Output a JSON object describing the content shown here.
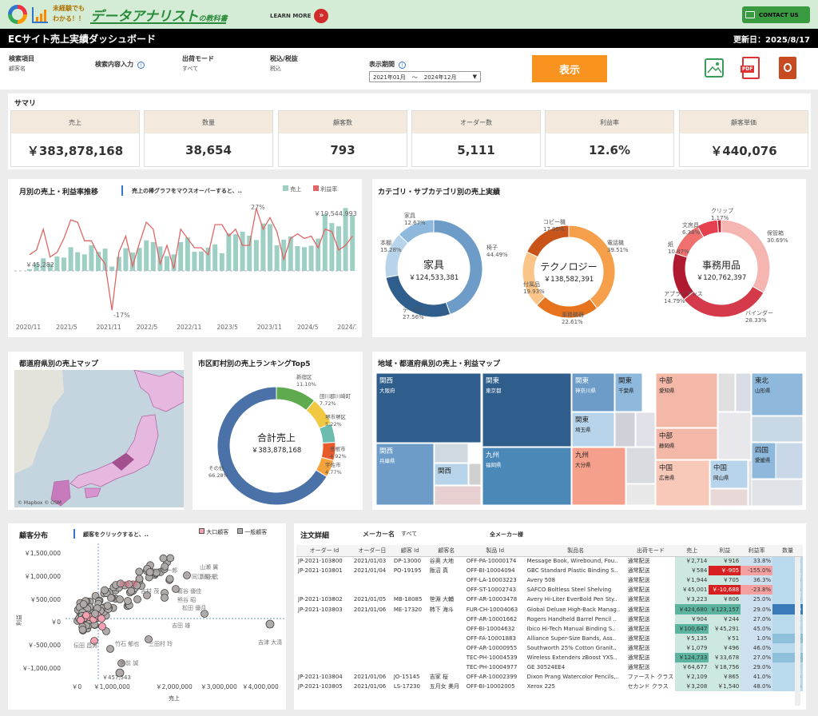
{
  "banner": {
    "logo_top": "未経験でも",
    "logo_bottom": "わかる！！",
    "title": "データアナリスト",
    "title_suffix": "の教科書",
    "learn_more": "LEARN MORE",
    "contact": "CONTACT US"
  },
  "header": {
    "title": "ECサイト売上実績ダッシュボード",
    "updated": "更新日：2025/8/17"
  },
  "filters": [
    {
      "label": "検索項目",
      "value": "顧客名"
    },
    {
      "label": "検索内容入力",
      "value": ""
    },
    {
      "label": "出荷モード",
      "value": "すべて"
    },
    {
      "label": "税込/税抜",
      "value": "税込"
    }
  ],
  "period": {
    "label": "表示期間",
    "from": "2021年01月",
    "sep": "～",
    "to": "2024年12月"
  },
  "show_button": "表示",
  "icons": {
    "image": "image-icon",
    "pdf": "PDF",
    "ppt": "ppt-icon"
  },
  "summary": {
    "title": "サマリ",
    "kpis": [
      {
        "label": "売上",
        "value": "￥383,878,168"
      },
      {
        "label": "数量",
        "value": "38,654"
      },
      {
        "label": "顧客数",
        "value": "793"
      },
      {
        "label": "オーダー数",
        "value": "5,111"
      },
      {
        "label": "利益率",
        "value": "12.6%"
      },
      {
        "label": "顧客単価",
        "value": "￥440,076"
      }
    ]
  },
  "monthly": {
    "title": "月別の売上・利益率推移",
    "hint": "売上の棒グラフをマウスオーバーすると、..",
    "legend_sales": "売上",
    "legend_rate": "利益率",
    "label_max": "￥19,544,993",
    "label_min": "￥45,282",
    "label_rate_max": "27%",
    "label_rate_min": "-17%",
    "xticks": [
      "2020/11",
      "2021/5",
      "2021/11",
      "2022/5",
      "2022/11",
      "2023/5",
      "2023/11",
      "2024/5",
      "2024/11"
    ]
  },
  "category": {
    "title": "カテゴリ・サブカテゴリ別の売上実績"
  },
  "map": {
    "title": "都道府県別の売上マップ",
    "credit": "© Mapbox © OSM"
  },
  "top5": {
    "title": "市区町村別の売上ランキングTop5",
    "center_label": "合計売上",
    "center_value": "￥383,878,168"
  },
  "treemap": {
    "title": "地域・都道府県別の売上・利益マップ"
  },
  "scatter": {
    "title": "顧客分布",
    "hint": "顧客をクリックすると、..",
    "legend_big": "大口顧客",
    "legend_normal": "一般顧客",
    "ylabel": "利益",
    "xlabel": "売上",
    "yticks": [
      "￥1,500,000",
      "￥1,000,000",
      "￥500,000",
      "￥0",
      "￥-500,000",
      "￥-1,000,000"
    ],
    "xticks": [
      "￥0",
      "￥1,000,000",
      "￥2,000,000",
      "￥3,000,000",
      "￥4,000,000"
    ],
    "names": [
      "川崎 一郎",
      "山瀬 翼",
      "同江 昭夫",
      "武藤 陽",
      "吉村 茂",
      "葛谷 優佳",
      "熊谷 昭",
      "松田 優月",
      "吉田 雄",
      "伝田 昌男",
      "竹石 郁也",
      "三田村 玲",
      "吉津 大清",
      "宮前 誠",
      "両野 武"
    ],
    "annotation": "￥457,543"
  },
  "details": {
    "title": "注文詳細",
    "maker_label": "メーカー名",
    "maker_value": "すべて",
    "all_makers": "全メーカー様",
    "columns": [
      "オーダー Id",
      "オーダー日",
      "顧客 Id",
      "顧客名",
      "製品 Id",
      "製品名",
      "出荷モード",
      "売上",
      "利益",
      "利益率",
      "数量"
    ],
    "rows": [
      [
        "JP-2021-103800",
        "2021/01/03",
        "DP-13000",
        "谷奥 大地",
        "OFF-PA-10000174",
        "Message Book, Wirebound, Fou..",
        "通常配送",
        "￥2,714",
        "￥916",
        "33.8%",
        "2"
      ],
      [
        "JP-2021-103801",
        "2021/01/04",
        "PO-19195",
        "飯沼 真",
        "OFF-BI-10004094",
        "GBC Standard Plastic Binding S..",
        "通常配送",
        "￥584",
        "￥-905",
        "-155.0%",
        "2"
      ],
      [
        "",
        "",
        "",
        "",
        "OFF-LA-10003223",
        "Avery 508",
        "通常配送",
        "￥1,944",
        "￥705",
        "36.3%",
        "3"
      ],
      [
        "",
        "",
        "",
        "",
        "OFF-ST-10002743",
        "SAFCO Boltless Steel Shelving",
        "通常配送",
        "￥45,001",
        "￥-10,688",
        "-23.8%",
        "3"
      ],
      [
        "JP-2021-103802",
        "2021/01/05",
        "MB-18085",
        "笹淵 大輔",
        "OFF-AR-10003478",
        "Avery Hi-Liter EverBold Pen Sty..",
        "通常配送",
        "￥3,223",
        "￥806",
        "25.0%",
        "3"
      ],
      [
        "JP-2021-103803",
        "2021/01/06",
        "ME-17320",
        "柿下 海斗",
        "FUR-CH-10004063",
        "Global Deluxe High-Back Manag..",
        "通常配送",
        "￥424,680",
        "￥123,157",
        "29.0%",
        "9"
      ],
      [
        "",
        "",
        "",
        "",
        "OFF-AR-10001662",
        "Rogers Handheld Barrel Pencil ..",
        "通常配送",
        "￥904",
        "￥244",
        "27.0%",
        "2"
      ],
      [
        "",
        "",
        "",
        "",
        "OFF-BI-10004632",
        "Ibico Hi-Tech Manual Binding S..",
        "通常配送",
        "￥100,647",
        "￥45,291",
        "45.0%",
        "2"
      ],
      [
        "",
        "",
        "",
        "",
        "OFF-FA-10001883",
        "Alliance Super-Size Bands, Ass..",
        "通常配送",
        "￥5,135",
        "￥51",
        "1.0%",
        "4"
      ],
      [
        "",
        "",
        "",
        "",
        "OFF-AR-10000955",
        "Southworth 25% Cotton Granit..",
        "通常配送",
        "￥1,079",
        "￥496",
        "46.0%",
        "1"
      ],
      [
        "",
        "",
        "",
        "",
        "TEC-PH-10004539",
        "Wireless Extenders zBoost YXS..",
        "通常配送",
        "￥124,733",
        "￥33,678",
        "27.0%",
        "4"
      ],
      [
        "",
        "",
        "",
        "",
        "TEC-PH-10004977",
        "GE 30524EE4",
        "通常配送",
        "￥64,677",
        "￥18,756",
        "29.0%",
        "2"
      ],
      [
        "JP-2021-103804",
        "2021/01/06",
        "JO-15145",
        "吉家 桜",
        "OFF-AR-10002399",
        "Dixon Prang Watercolor Pencils,..",
        "ファースト クラス",
        "￥2,109",
        "￥865",
        "41.0%",
        "3"
      ],
      [
        "JP-2021-103805",
        "2021/01/06",
        "LS-17230",
        "五月女 美月",
        "OFF-BI-10002005",
        "Xerox 225",
        "セカンド クラス",
        "￥3,208",
        "￥1,540",
        "48.0%",
        "3"
      ]
    ]
  },
  "chart_data": [
    {
      "type": "donut",
      "title": "家具",
      "total": "￥124,533,381",
      "slices": [
        {
          "name": "椅子",
          "value": 44.49
        },
        {
          "name": "テーブル",
          "value": 27.56
        },
        {
          "name": "本棚",
          "value": 15.28
        },
        {
          "name": "家具",
          "value": 12.67
        }
      ]
    },
    {
      "type": "donut",
      "title": "テクノロジー",
      "total": "￥138,582,391",
      "slices": [
        {
          "name": "電話機",
          "value": 39.51
        },
        {
          "name": "事務機器",
          "value": 22.61
        },
        {
          "name": "付属品",
          "value": 19.93
        },
        {
          "name": "コピー機",
          "value": 17.95
        }
      ]
    },
    {
      "type": "donut",
      "title": "事務用品",
      "total": "￥120,762,397",
      "slices": [
        {
          "name": "保管箱",
          "value": 30.69
        },
        {
          "name": "バインダー",
          "value": 28.33
        },
        {
          "name": "アプライアンス",
          "value": 14.79
        },
        {
          "name": "紙",
          "value": 10.87
        },
        {
          "name": "文房具",
          "value": 6.38
        },
        {
          "name": "クリップ",
          "value": 1.17
        }
      ]
    },
    {
      "type": "donut",
      "title": "合計売上",
      "slices": [
        {
          "name": "新宿区",
          "value": 11.1
        },
        {
          "name": "田川郡川崎町",
          "value": 7.72
        },
        {
          "name": "堺市堺区",
          "value": 5.22
        },
        {
          "name": "島根市",
          "value": 4.92
        },
        {
          "name": "宇佐市",
          "value": 4.77
        },
        {
          "name": "その他",
          "value": 66.28
        }
      ]
    },
    {
      "type": "bar+line",
      "title": "月別の売上・利益率推移",
      "series": [
        {
          "name": "売上",
          "values": [
            0.5,
            2.1,
            3.5,
            2.0,
            4.0,
            3.7,
            6.6,
            5.2,
            4.6,
            7.1,
            5.3,
            6.2,
            1.2,
            3.9,
            6.3,
            5.1,
            6.4,
            8.5,
            8.0,
            6.8,
            4.1,
            4.6,
            8.0,
            9.3,
            5.3,
            5.4,
            6.5,
            7.4,
            4.9,
            10.5,
            10.2,
            10.9,
            9.8,
            8.6,
            13.2,
            13.0,
            7.1,
            8.7,
            9.6,
            6.9,
            6.6,
            7.0,
            9.0,
            15.8,
            13.3,
            12.4,
            17.5,
            15.5
          ]
        },
        {
          "name": "利益率",
          "values": [
            7,
            9,
            18,
            6,
            8,
            14,
            22,
            21,
            13,
            13,
            7,
            3,
            -17,
            8,
            15,
            2,
            12,
            21,
            18,
            3,
            11,
            1,
            18,
            14,
            10,
            10,
            7,
            20,
            20,
            15,
            18,
            11,
            11,
            27,
            18,
            23,
            17,
            5,
            14,
            16,
            14,
            15,
            10,
            18,
            17,
            9,
            11,
            15
          ]
        }
      ]
    },
    {
      "type": "treemap",
      "title": "地域・都道府県別の売上・利益マップ",
      "items": [
        {
          "region": "関西",
          "pref": "大阪府"
        },
        {
          "region": "関西",
          "pref": "兵庫県"
        },
        {
          "region": "関西",
          "pref": ""
        },
        {
          "region": "関東",
          "pref": "東京都"
        },
        {
          "region": "関東",
          "pref": "神奈川県"
        },
        {
          "region": "関東",
          "pref": "千葉県"
        },
        {
          "region": "関東",
          "pref": "埼玉県"
        },
        {
          "region": "九州",
          "pref": "福岡県"
        },
        {
          "region": "九州",
          "pref": "大分県"
        },
        {
          "region": "中部",
          "pref": "愛知県"
        },
        {
          "region": "中部",
          "pref": "静岡県"
        },
        {
          "region": "中国",
          "pref": "広島県"
        },
        {
          "region": "中国",
          "pref": "岡山県"
        },
        {
          "region": "東北",
          "pref": "山形県"
        },
        {
          "region": "四国",
          "pref": "愛媛県"
        }
      ]
    },
    {
      "type": "scatter",
      "title": "顧客分布",
      "xlabel": "売上",
      "ylabel": "利益",
      "xlim": [
        0,
        4000000
      ],
      "ylim": [
        -1200000,
        1600000
      ],
      "series": [
        {
          "name": "大口顧客"
        },
        {
          "name": "一般顧客"
        }
      ]
    }
  ]
}
